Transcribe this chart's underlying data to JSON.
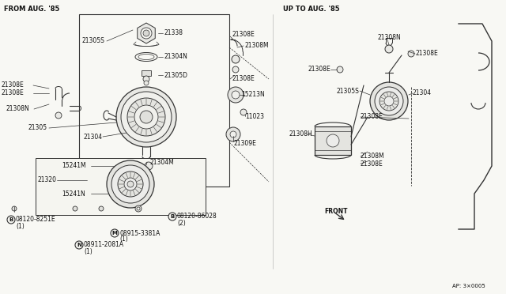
{
  "bg_color": "#f5f5f0",
  "line_color": "#333333",
  "text_color": "#111111",
  "title_left": "FROM AUG. '85",
  "title_right": "UP TO AUG. '85",
  "footer": "AP: 3×0005",
  "font_size": 5.5,
  "fig_w": 6.4,
  "fig_h": 3.72,
  "dpi": 100
}
